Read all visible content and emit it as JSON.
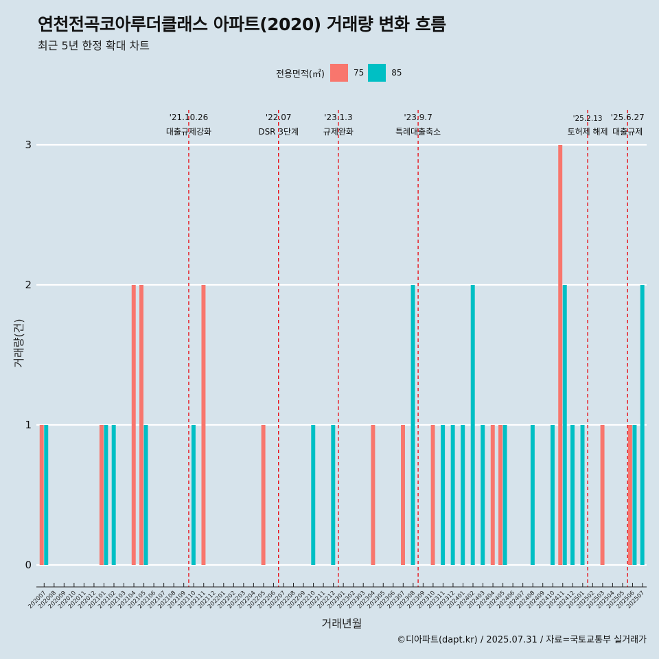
{
  "header": {
    "title": "연천전곡코아루더클래스 아파트(2020) 거래량 변화 흐름",
    "subtitle": "최근 5년 한정 확대 차트"
  },
  "caption": "©디아파트(dapt.kr) / 2025.07.31 / 자료=국토교통부 실거래가",
  "legend": {
    "title": "전용면적(㎡)",
    "items": [
      {
        "label": "75",
        "color": "#f8766d"
      },
      {
        "label": "85",
        "color": "#00bfc4"
      }
    ]
  },
  "chart_data": {
    "type": "bar",
    "title": "연천전곡코아루더클래스 아파트(2020) 거래량 변화 흐름",
    "xlabel": "거래년월",
    "ylabel": "거래량(건)",
    "ylim": [
      0,
      3
    ],
    "yticks": [
      0,
      1,
      2,
      3
    ],
    "categories": [
      "202007",
      "202008",
      "202009",
      "202010",
      "202011",
      "202012",
      "202101",
      "202102",
      "202103",
      "202104",
      "202105",
      "202106",
      "202107",
      "202108",
      "202109",
      "202110",
      "202111",
      "202112",
      "202201",
      "202202",
      "202203",
      "202204",
      "202205",
      "202206",
      "202207",
      "202208",
      "202209",
      "202210",
      "202211",
      "202212",
      "202301",
      "202302",
      "202303",
      "202304",
      "202305",
      "202306",
      "202307",
      "202308",
      "202309",
      "202310",
      "202311",
      "202312",
      "202401",
      "202402",
      "202403",
      "202404",
      "202405",
      "202406",
      "202407",
      "202408",
      "202409",
      "202410",
      "202411",
      "202412",
      "202501",
      "202502",
      "202503",
      "202504",
      "202505",
      "202506",
      "202507"
    ],
    "series": [
      {
        "name": "75",
        "color": "#f8766d",
        "values": [
          1,
          0,
          0,
          0,
          0,
          0,
          1,
          0,
          0,
          2,
          2,
          0,
          0,
          0,
          0,
          0,
          2,
          0,
          0,
          0,
          0,
          0,
          1,
          0,
          0,
          0,
          0,
          0,
          0,
          0,
          0,
          0,
          0,
          1,
          0,
          0,
          1,
          0,
          0,
          1,
          0,
          0,
          0,
          0,
          0,
          1,
          1,
          0,
          0,
          0,
          0,
          0,
          3,
          0,
          0,
          0,
          1,
          0,
          0,
          1,
          0
        ]
      },
      {
        "name": "85",
        "color": "#00bfc4",
        "values": [
          1,
          0,
          0,
          0,
          0,
          0,
          1,
          1,
          0,
          0,
          1,
          0,
          0,
          0,
          0,
          1,
          0,
          0,
          0,
          0,
          0,
          0,
          0,
          0,
          0,
          0,
          0,
          1,
          0,
          1,
          0,
          0,
          0,
          0,
          0,
          0,
          0,
          2,
          0,
          0,
          1,
          1,
          1,
          2,
          1,
          0,
          1,
          0,
          0,
          1,
          0,
          1,
          2,
          1,
          1,
          0,
          0,
          0,
          0,
          1,
          2
        ]
      }
    ],
    "events": [
      {
        "date": "'21.10.26",
        "label": "대출규제강화",
        "month": "202110"
      },
      {
        "date": "'22.07",
        "label": "DSR 3단계",
        "month": "202207"
      },
      {
        "date": "'23.1.3",
        "label": "규제완화",
        "month": "202301"
      },
      {
        "date": "'23.9.7",
        "label": "특례대출축소",
        "month": "202309"
      },
      {
        "date": "'25.2.13",
        "label": "토허제 해제",
        "month": "202502"
      },
      {
        "date": "'25.6.27",
        "label": "대출규제",
        "month": "202506"
      }
    ]
  }
}
